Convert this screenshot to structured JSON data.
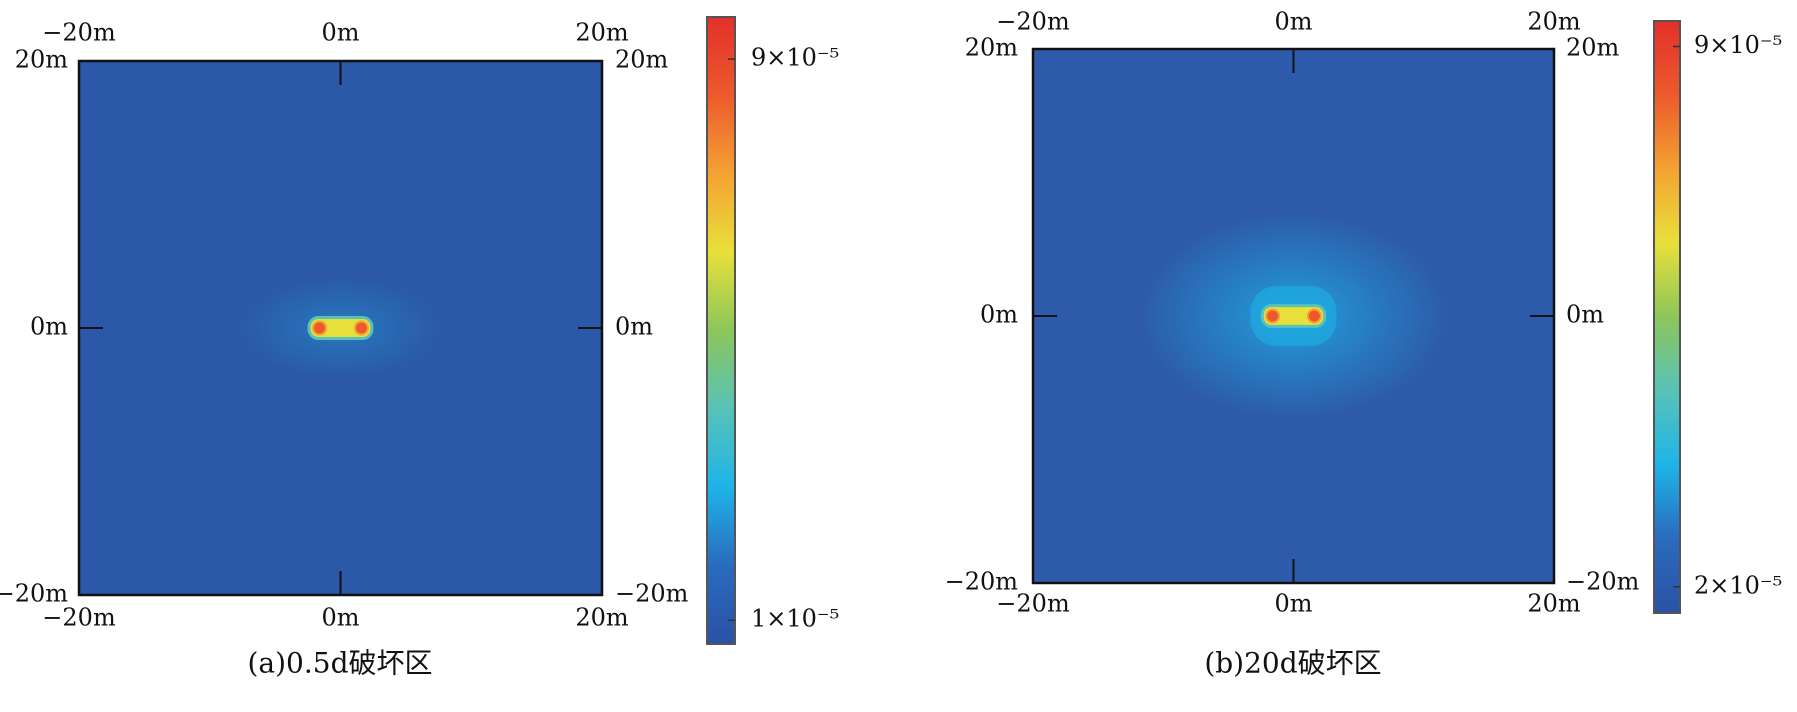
{
  "chart_data": [
    {
      "type": "heatmap",
      "caption": "(a)0.5d破坏区",
      "xlim": [
        -20,
        20
      ],
      "ylim": [
        -20,
        20
      ],
      "xticks": [
        {
          "value": -20,
          "label": "−20m"
        },
        {
          "value": 0,
          "label": "0m"
        },
        {
          "value": 20,
          "label": "20m"
        }
      ],
      "yticks": [
        {
          "value": -20,
          "label": "−20m"
        },
        {
          "value": 0,
          "label": "0m"
        },
        {
          "value": 20,
          "label": "20m"
        }
      ],
      "clim": [
        6.6e-06,
        9.6e-05
      ],
      "cticks": [
        {
          "value": 1e-05,
          "label": "1×10⁻⁵"
        },
        {
          "value": 9e-05,
          "label": "9×10⁻⁵"
        }
      ],
      "background": "#2b58a8",
      "colormap": [
        "#2a52a6",
        "#2a6bbd",
        "#1eb4e8",
        "#58c2b8",
        "#8cc65a",
        "#e8e03a",
        "#f4a233",
        "#ec5a2c",
        "#e3302a"
      ]
    },
    {
      "type": "heatmap",
      "caption": "(b)20d破坏区",
      "xlim": [
        -20,
        20
      ],
      "ylim": [
        -20,
        20
      ],
      "xticks": [
        {
          "value": -20,
          "label": "−20m"
        },
        {
          "value": 0,
          "label": "0m"
        },
        {
          "value": 20,
          "label": "20m"
        }
      ],
      "yticks": [
        {
          "value": -20,
          "label": "−20m"
        },
        {
          "value": 0,
          "label": "0m"
        },
        {
          "value": 20,
          "label": "20m"
        }
      ],
      "clim": [
        1.66e-05,
        9.33e-05
      ],
      "cticks": [
        {
          "value": 2e-05,
          "label": "2×10⁻⁵"
        },
        {
          "value": 9e-05,
          "label": "9×10⁻⁵"
        }
      ],
      "background": "#2d5aaa",
      "colormap": [
        "#2a52a6",
        "#2a6bbd",
        "#1eb4e8",
        "#58c2b8",
        "#8cc65a",
        "#e8e03a",
        "#f4a233",
        "#ec5a2c",
        "#e3302a"
      ]
    }
  ]
}
